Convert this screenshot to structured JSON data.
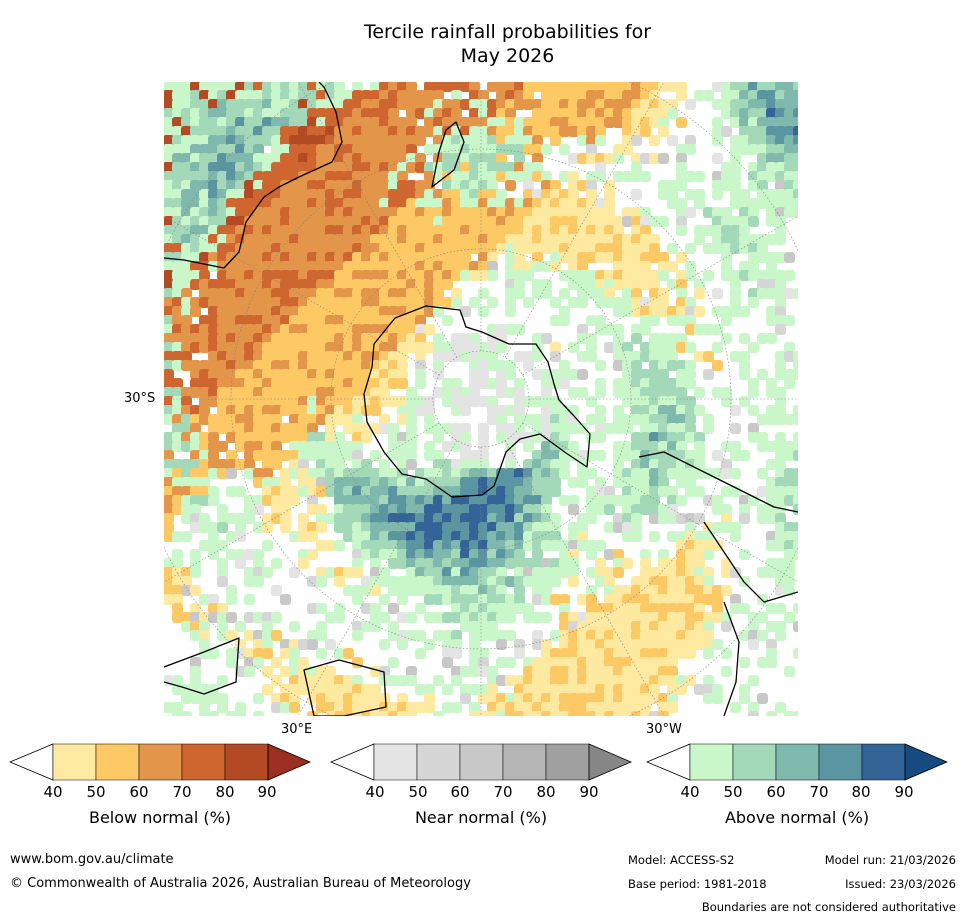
{
  "title": {
    "line1": "Tercile rainfall probabilities for",
    "line2": "May 2026"
  },
  "axis_labels": {
    "lat": "30°S",
    "lon_east": "30°E",
    "lon_west": "30°W"
  },
  "colors": {
    "below": [
      "#fde9a0",
      "#fdc965",
      "#e3964a",
      "#cf6630",
      "#b24a24",
      "#9b3020"
    ],
    "near": [
      "#e4e4e4",
      "#d6d6d6",
      "#c8c8c8",
      "#b5b5b5",
      "#a0a0a0",
      "#868686"
    ],
    "above": [
      "#c9f7ca",
      "#a3d8b8",
      "#7fb8ac",
      "#5b95a1",
      "#346397",
      "#164a80"
    ],
    "land_outline": "#000000",
    "grid": "#808080"
  },
  "legends": [
    {
      "id": "below",
      "label": "Below normal (%)",
      "ticks": [
        "40",
        "50",
        "60",
        "70",
        "80",
        "90"
      ]
    },
    {
      "id": "near",
      "label": "Near normal (%)",
      "ticks": [
        "40",
        "50",
        "60",
        "70",
        "80",
        "90"
      ]
    },
    {
      "id": "above",
      "label": "Above normal (%)",
      "ticks": [
        "40",
        "50",
        "60",
        "70",
        "80",
        "90"
      ]
    }
  ],
  "footer": {
    "website": "www.bom.gov.au/climate",
    "copyright": "© Commonwealth of Australia 2026, Australian Bureau of Meteorology",
    "model": "Model: ACCESS-S2",
    "base_period": "Base period: 1981-2018",
    "model_run": "Model run: 21/03/2026",
    "issued": "Issued: 23/03/2026",
    "disclaimer": "Boundaries are not considered authoritative"
  }
}
